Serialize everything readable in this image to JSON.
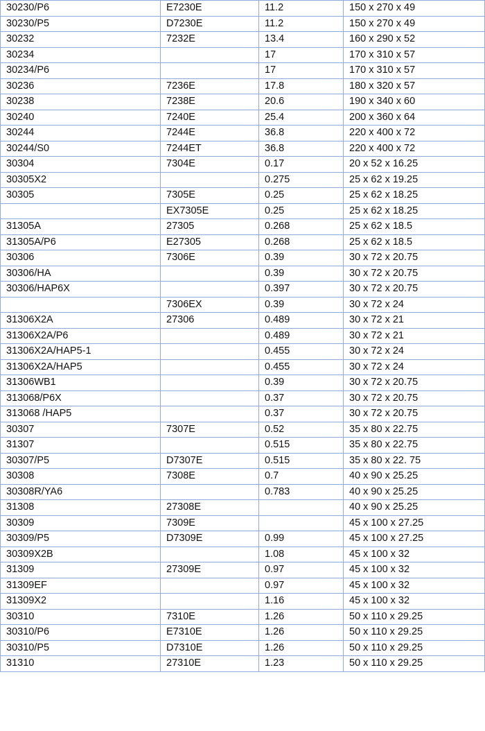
{
  "table": {
    "rows": [
      [
        "30230/P6",
        "E7230E",
        "11.2",
        "150 x 270 x 49"
      ],
      [
        "30230/P5",
        "D7230E",
        "11.2",
        "150 x 270 x 49"
      ],
      [
        "30232",
        "7232E",
        "13.4",
        "160 x 290 x 52"
      ],
      [
        "30234",
        "",
        "17",
        "170 x 310 x 57"
      ],
      [
        "30234/P6",
        "",
        "17",
        "170 x 310 x 57"
      ],
      [
        "30236",
        "7236E",
        "17.8",
        "180 x 320 x 57"
      ],
      [
        "30238",
        "7238E",
        "20.6",
        "190 x 340 x 60"
      ],
      [
        "30240",
        "7240E",
        "25.4",
        "200 x 360 x 64"
      ],
      [
        "30244",
        "7244E",
        "36.8",
        "220 x 400 x 72"
      ],
      [
        "30244/S0",
        "7244ET",
        "36.8",
        "220 x 400 x 72"
      ],
      [
        "30304",
        "7304E",
        "0.17",
        "20 x 52 x 16.25"
      ],
      [
        "30305X2",
        "",
        "0.275",
        "25 x 62 x 19.25"
      ],
      [
        "30305",
        "7305E",
        "0.25",
        "25 x 62 x 18.25"
      ],
      [
        "",
        "EX7305E",
        "0.25",
        "25 x 62 x 18.25"
      ],
      [
        "31305A",
        "27305",
        "0.268",
        "25 x 62 x 18.5"
      ],
      [
        "31305A/P6",
        "E27305",
        "0.268",
        "25 x 62 x 18.5"
      ],
      [
        "30306",
        "7306E",
        "0.39",
        "30 x 72 x 20.75"
      ],
      [
        "30306/HA",
        "",
        "0.39",
        "30 x 72 x 20.75"
      ],
      [
        "30306/HAP6X",
        "",
        "0.397",
        "30 x 72 x 20.75"
      ],
      [
        "",
        "7306EX",
        "0.39",
        "30 x 72 x 24"
      ],
      [
        "31306X2A",
        "27306",
        "0.489",
        "30 x 72 x 21"
      ],
      [
        "31306X2A/P6",
        "",
        "0.489",
        "30 x 72 x 21"
      ],
      [
        "31306X2A/HAP5-1",
        "",
        "0.455",
        "30 x 72 x 24"
      ],
      [
        "31306X2A/HAP5",
        "",
        "0.455",
        "30 x 72 x 24"
      ],
      [
        "31306WB1",
        "",
        "0.39",
        "30 x 72 x 20.75"
      ],
      [
        "313068/P6X",
        "",
        "0.37",
        "30 x 72 x 20.75"
      ],
      [
        "313068 /HAP5",
        "",
        "0.37",
        "30 x 72 x 20.75"
      ],
      [
        "30307",
        "7307E",
        "0.52",
        "35 x 80 x 22.75"
      ],
      [
        "31307",
        "",
        "0.515",
        "35 x 80 x 22.75"
      ],
      [
        "30307/P5",
        "D7307E",
        "0.515",
        "35 x 80 x 22. 75"
      ],
      [
        "30308",
        "7308E",
        "0.7",
        "40 x 90 x 25.25"
      ],
      [
        "30308R/YA6",
        "",
        "0.783",
        "40 x 90 x 25.25"
      ],
      [
        "31308",
        "27308E",
        "",
        "40 x 90 x 25.25"
      ],
      [
        "30309",
        "7309E",
        "",
        "45 x 100 x 27.25"
      ],
      [
        "30309/P5",
        "D7309E",
        "0.99",
        "45 x 100 x 27.25"
      ],
      [
        "30309X2B",
        "",
        "1.08",
        "45 x 100 x 32"
      ],
      [
        "31309",
        "27309E",
        "0.97",
        "45 x 100 x 32"
      ],
      [
        "31309EF",
        "",
        "0.97",
        "45 x 100 x 32"
      ],
      [
        "31309X2",
        "",
        "1.16",
        "45 x 100 x 32"
      ],
      [
        "30310",
        "7310E",
        "1.26",
        "50 x 110 x 29.25"
      ],
      [
        "30310/P6",
        "E7310E",
        "1.26",
        "50 x 110 x 29.25"
      ],
      [
        "30310/P5",
        "D7310E",
        "1.26",
        "50 x 110 x 29.25"
      ],
      [
        "31310",
        "27310E",
        "1.23",
        "50 x 110 x 29.25"
      ]
    ]
  }
}
